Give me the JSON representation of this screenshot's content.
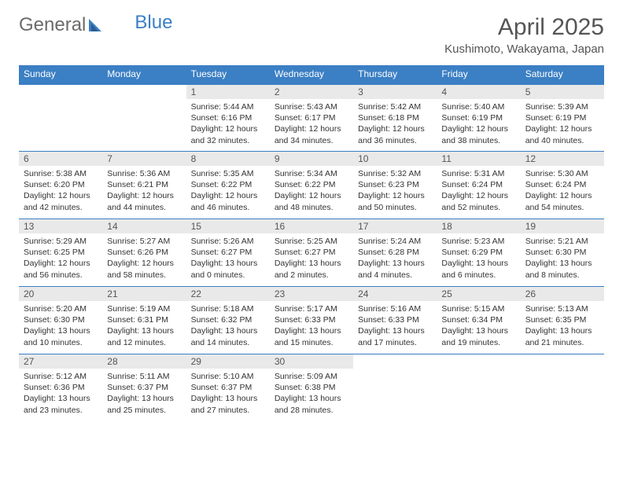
{
  "brand": {
    "part1": "General",
    "part2": "Blue"
  },
  "title": "April 2025",
  "location": "Kushimoto, Wakayama, Japan",
  "colors": {
    "header_bg": "#3b7fc4",
    "header_text": "#ffffff",
    "daynum_bg": "#e9e9e9",
    "body_text": "#333333",
    "brand_gray": "#6b6b6b",
    "brand_blue": "#3b7fc4"
  },
  "weekdays": [
    "Sunday",
    "Monday",
    "Tuesday",
    "Wednesday",
    "Thursday",
    "Friday",
    "Saturday"
  ],
  "weeks": [
    [
      {
        "n": "",
        "sr": "",
        "ss": "",
        "dl": ""
      },
      {
        "n": "",
        "sr": "",
        "ss": "",
        "dl": ""
      },
      {
        "n": "1",
        "sr": "Sunrise: 5:44 AM",
        "ss": "Sunset: 6:16 PM",
        "dl": "Daylight: 12 hours and 32 minutes."
      },
      {
        "n": "2",
        "sr": "Sunrise: 5:43 AM",
        "ss": "Sunset: 6:17 PM",
        "dl": "Daylight: 12 hours and 34 minutes."
      },
      {
        "n": "3",
        "sr": "Sunrise: 5:42 AM",
        "ss": "Sunset: 6:18 PM",
        "dl": "Daylight: 12 hours and 36 minutes."
      },
      {
        "n": "4",
        "sr": "Sunrise: 5:40 AM",
        "ss": "Sunset: 6:19 PM",
        "dl": "Daylight: 12 hours and 38 minutes."
      },
      {
        "n": "5",
        "sr": "Sunrise: 5:39 AM",
        "ss": "Sunset: 6:19 PM",
        "dl": "Daylight: 12 hours and 40 minutes."
      }
    ],
    [
      {
        "n": "6",
        "sr": "Sunrise: 5:38 AM",
        "ss": "Sunset: 6:20 PM",
        "dl": "Daylight: 12 hours and 42 minutes."
      },
      {
        "n": "7",
        "sr": "Sunrise: 5:36 AM",
        "ss": "Sunset: 6:21 PM",
        "dl": "Daylight: 12 hours and 44 minutes."
      },
      {
        "n": "8",
        "sr": "Sunrise: 5:35 AM",
        "ss": "Sunset: 6:22 PM",
        "dl": "Daylight: 12 hours and 46 minutes."
      },
      {
        "n": "9",
        "sr": "Sunrise: 5:34 AM",
        "ss": "Sunset: 6:22 PM",
        "dl": "Daylight: 12 hours and 48 minutes."
      },
      {
        "n": "10",
        "sr": "Sunrise: 5:32 AM",
        "ss": "Sunset: 6:23 PM",
        "dl": "Daylight: 12 hours and 50 minutes."
      },
      {
        "n": "11",
        "sr": "Sunrise: 5:31 AM",
        "ss": "Sunset: 6:24 PM",
        "dl": "Daylight: 12 hours and 52 minutes."
      },
      {
        "n": "12",
        "sr": "Sunrise: 5:30 AM",
        "ss": "Sunset: 6:24 PM",
        "dl": "Daylight: 12 hours and 54 minutes."
      }
    ],
    [
      {
        "n": "13",
        "sr": "Sunrise: 5:29 AM",
        "ss": "Sunset: 6:25 PM",
        "dl": "Daylight: 12 hours and 56 minutes."
      },
      {
        "n": "14",
        "sr": "Sunrise: 5:27 AM",
        "ss": "Sunset: 6:26 PM",
        "dl": "Daylight: 12 hours and 58 minutes."
      },
      {
        "n": "15",
        "sr": "Sunrise: 5:26 AM",
        "ss": "Sunset: 6:27 PM",
        "dl": "Daylight: 13 hours and 0 minutes."
      },
      {
        "n": "16",
        "sr": "Sunrise: 5:25 AM",
        "ss": "Sunset: 6:27 PM",
        "dl": "Daylight: 13 hours and 2 minutes."
      },
      {
        "n": "17",
        "sr": "Sunrise: 5:24 AM",
        "ss": "Sunset: 6:28 PM",
        "dl": "Daylight: 13 hours and 4 minutes."
      },
      {
        "n": "18",
        "sr": "Sunrise: 5:23 AM",
        "ss": "Sunset: 6:29 PM",
        "dl": "Daylight: 13 hours and 6 minutes."
      },
      {
        "n": "19",
        "sr": "Sunrise: 5:21 AM",
        "ss": "Sunset: 6:30 PM",
        "dl": "Daylight: 13 hours and 8 minutes."
      }
    ],
    [
      {
        "n": "20",
        "sr": "Sunrise: 5:20 AM",
        "ss": "Sunset: 6:30 PM",
        "dl": "Daylight: 13 hours and 10 minutes."
      },
      {
        "n": "21",
        "sr": "Sunrise: 5:19 AM",
        "ss": "Sunset: 6:31 PM",
        "dl": "Daylight: 13 hours and 12 minutes."
      },
      {
        "n": "22",
        "sr": "Sunrise: 5:18 AM",
        "ss": "Sunset: 6:32 PM",
        "dl": "Daylight: 13 hours and 14 minutes."
      },
      {
        "n": "23",
        "sr": "Sunrise: 5:17 AM",
        "ss": "Sunset: 6:33 PM",
        "dl": "Daylight: 13 hours and 15 minutes."
      },
      {
        "n": "24",
        "sr": "Sunrise: 5:16 AM",
        "ss": "Sunset: 6:33 PM",
        "dl": "Daylight: 13 hours and 17 minutes."
      },
      {
        "n": "25",
        "sr": "Sunrise: 5:15 AM",
        "ss": "Sunset: 6:34 PM",
        "dl": "Daylight: 13 hours and 19 minutes."
      },
      {
        "n": "26",
        "sr": "Sunrise: 5:13 AM",
        "ss": "Sunset: 6:35 PM",
        "dl": "Daylight: 13 hours and 21 minutes."
      }
    ],
    [
      {
        "n": "27",
        "sr": "Sunrise: 5:12 AM",
        "ss": "Sunset: 6:36 PM",
        "dl": "Daylight: 13 hours and 23 minutes."
      },
      {
        "n": "28",
        "sr": "Sunrise: 5:11 AM",
        "ss": "Sunset: 6:37 PM",
        "dl": "Daylight: 13 hours and 25 minutes."
      },
      {
        "n": "29",
        "sr": "Sunrise: 5:10 AM",
        "ss": "Sunset: 6:37 PM",
        "dl": "Daylight: 13 hours and 27 minutes."
      },
      {
        "n": "30",
        "sr": "Sunrise: 5:09 AM",
        "ss": "Sunset: 6:38 PM",
        "dl": "Daylight: 13 hours and 28 minutes."
      },
      {
        "n": "",
        "sr": "",
        "ss": "",
        "dl": ""
      },
      {
        "n": "",
        "sr": "",
        "ss": "",
        "dl": ""
      },
      {
        "n": "",
        "sr": "",
        "ss": "",
        "dl": ""
      }
    ]
  ]
}
